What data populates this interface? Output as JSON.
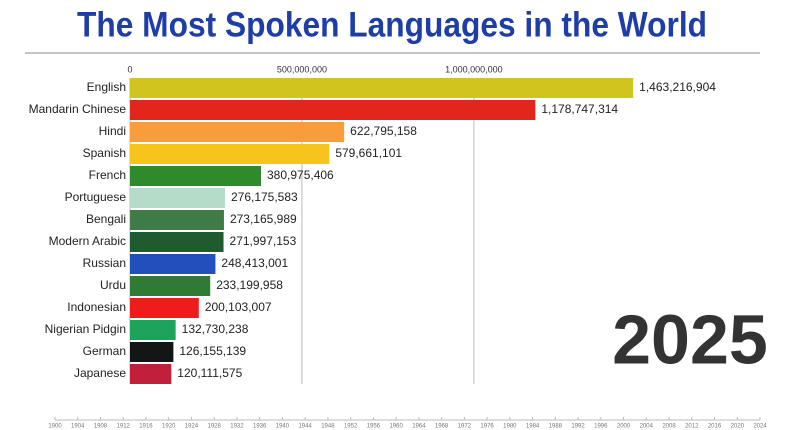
{
  "chart_data": {
    "type": "bar",
    "orientation": "horizontal",
    "title": "The Most Spoken Languages in the World",
    "categories": [
      "English",
      "Mandarin Chinese",
      "Hindi",
      "Spanish",
      "French",
      "Portuguese",
      "Bengali",
      "Modern Arabic",
      "Russian",
      "Urdu",
      "Indonesian",
      "Nigerian Pidgin",
      "German",
      "Japanese"
    ],
    "values": [
      1463216904,
      1178747314,
      622795158,
      579661101,
      380975406,
      276175583,
      273165989,
      271997153,
      248413001,
      233199958,
      200103007,
      132730238,
      126155139,
      120111575
    ],
    "value_labels": [
      "1,463,216,904",
      "1,178,747,314",
      "622,795,158",
      "579,661,101",
      "380,975,406",
      "276,175,583",
      "273,165,989",
      "271,997,153",
      "248,413,001",
      "233,199,958",
      "200,103,007",
      "132,730,238",
      "126,155,139",
      "120,111,575"
    ],
    "colors": [
      "#d1c41e",
      "#e3261b",
      "#f99c3b",
      "#f6c41c",
      "#2f8a2c",
      "#b5dcc9",
      "#3e7b46",
      "#1f5b2f",
      "#2150bd",
      "#2f7b33",
      "#ef1c1c",
      "#1ea35b",
      "#151515",
      "#c21f3b"
    ],
    "xlim": [
      0,
      1800000000
    ],
    "xticks": [
      0,
      {
        "value": 500000000,
        "label": "500,000,000"
      },
      {
        "value": 1000000000,
        "label": "1,000,000,000"
      }
    ],
    "grid": true,
    "year": "2025",
    "timeline_ticks": [
      1900,
      1904,
      1908,
      1912,
      1916,
      1920,
      1924,
      1928,
      1932,
      1936,
      1940,
      1944,
      1948,
      1952,
      1956,
      1960,
      1964,
      1968,
      1972,
      1976,
      1980,
      1984,
      1988,
      1992,
      1996,
      2000,
      2004,
      2008,
      2012,
      2016,
      2020,
      2024
    ]
  }
}
